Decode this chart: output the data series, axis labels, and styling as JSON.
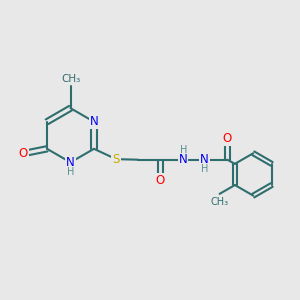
{
  "bg_color": "#e8e8e8",
  "atom_colors": {
    "N": "#0000ee",
    "O": "#ff0000",
    "S": "#ccaa00",
    "C": "#2f6e6e",
    "H": "#5a9090"
  },
  "bond_color": "#2f6e6e",
  "bond_width": 1.5,
  "font_size": 8.5,
  "font_family": "DejaVu Sans"
}
